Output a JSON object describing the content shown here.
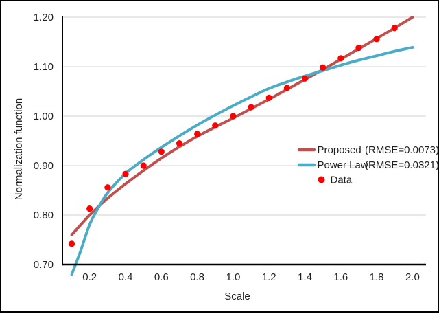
{
  "figure": {
    "background": "#ffffff",
    "border_color": "#000000"
  },
  "chart_data": {
    "type": "line-scatter",
    "title": "",
    "xlabel": "Scale",
    "ylabel": "Normalization function",
    "xlim": [
      0.048,
      2.075
    ],
    "ylim": [
      0.7,
      1.2
    ],
    "grid": "horizontal",
    "legend_position": "inside-right",
    "colors": {
      "axis": "#000000",
      "gridline": "#d9d9d9",
      "text": "#1f1f1f",
      "background": "#ffffff"
    },
    "x_ticks": {
      "values": [
        0.2,
        0.4,
        0.6,
        0.8,
        1.0,
        1.2,
        1.4,
        1.6,
        1.8,
        2.0
      ],
      "labels": [
        "0.2",
        "0.4",
        "0.6",
        "0.8",
        "1.0",
        "1.2",
        "1.4",
        "1.6",
        "1.8",
        "2.0"
      ]
    },
    "y_ticks": {
      "values": [
        0.7,
        0.8,
        0.9,
        1.0,
        1.1,
        1.2
      ],
      "labels": [
        "0.70",
        "0.80",
        "0.90",
        "1.00",
        "1.10",
        "1.20"
      ]
    },
    "series": [
      {
        "name": "Proposed",
        "type": "line",
        "color": "#C0504D",
        "rmse_label": "(RMSE=0.0073)",
        "x": [
          0.1,
          0.2,
          0.3,
          0.4,
          0.5,
          0.6,
          0.7,
          0.8,
          0.9,
          1.0,
          1.1,
          1.2,
          1.3,
          1.4,
          1.5,
          1.6,
          1.7,
          1.8,
          1.9,
          2.0
        ],
        "y": [
          0.76,
          0.8,
          0.834,
          0.863,
          0.89,
          0.915,
          0.938,
          0.959,
          0.978,
          0.996,
          1.015,
          1.034,
          1.054,
          1.074,
          1.094,
          1.115,
          1.136,
          1.157,
          1.178,
          1.2
        ]
      },
      {
        "name": "Power Law",
        "type": "line",
        "color": "#4BACC6",
        "rmse_label": "(RMSE=0.0321)",
        "x": [
          0.1,
          0.15,
          0.2,
          0.25,
          0.3,
          0.4,
          0.5,
          0.6,
          0.7,
          0.8,
          0.9,
          1.0,
          1.1,
          1.2,
          1.3,
          1.4,
          1.5,
          1.6,
          1.7,
          1.8,
          1.9,
          2.0
        ],
        "y": [
          0.68,
          0.728,
          0.781,
          0.816,
          0.845,
          0.884,
          0.912,
          0.937,
          0.96,
          0.982,
          1.002,
          1.021,
          1.039,
          1.056,
          1.069,
          1.081,
          1.092,
          1.103,
          1.113,
          1.122,
          1.131,
          1.139
        ]
      },
      {
        "name": "Data",
        "type": "scatter",
        "color": "#FE0000",
        "rmse_label": "",
        "x": [
          0.1,
          0.2,
          0.3,
          0.4,
          0.5,
          0.6,
          0.7,
          0.8,
          0.9,
          1.0,
          1.1,
          1.2,
          1.3,
          1.4,
          1.5,
          1.6,
          1.7,
          1.8,
          1.9
        ],
        "y": [
          0.742,
          0.813,
          0.856,
          0.883,
          0.9,
          0.928,
          0.945,
          0.964,
          0.981,
          1.0,
          1.018,
          1.037,
          1.057,
          1.076,
          1.098,
          1.117,
          1.138,
          1.156,
          1.178
        ]
      }
    ]
  }
}
